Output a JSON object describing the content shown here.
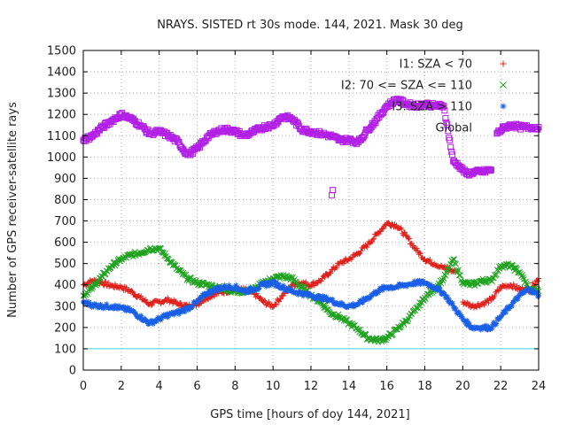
{
  "chart_data": {
    "type": "scatter",
    "title": "NRAYS. SISTED rt 30s mode. 144, 2021. Mask 30 deg",
    "xlabel": "GPS time [hours of doy 144, 2021]",
    "ylabel": "Number of GPS receiver-satellite rays",
    "xlim": [
      0,
      24
    ],
    "ylim": [
      0,
      1500
    ],
    "xticks": [
      "0",
      "2",
      "4",
      "6",
      "8",
      "10",
      "12",
      "14",
      "16",
      "18",
      "20",
      "22",
      "24"
    ],
    "yticks": [
      "0",
      "100",
      "200",
      "300",
      "400",
      "500",
      "600",
      "700",
      "800",
      "900",
      "1000",
      "1100",
      "1200",
      "1300",
      "1400",
      "1500"
    ],
    "grid": true,
    "legend_position": "top-right",
    "threshold": {
      "value": 100,
      "color": "#40d8e0"
    },
    "series": [
      {
        "name": "I1: SZA < 70",
        "marker": "+",
        "color": "#e0201a",
        "x": [
          0,
          0.5,
          1,
          1.5,
          2,
          2.5,
          3,
          3.5,
          4,
          4.5,
          5,
          5.5,
          6,
          6.5,
          7,
          7.5,
          8,
          8.5,
          9,
          9.5,
          10,
          10.5,
          11,
          11.5,
          12,
          12.5,
          13,
          13.5,
          14,
          14.5,
          15,
          15.5,
          16,
          16.5,
          17,
          17.5,
          18,
          18.5,
          19,
          19.3,
          19.6,
          20,
          20.5,
          21,
          21.5,
          22,
          22.5,
          23,
          23.5,
          24
        ],
        "y": [
          400,
          420,
          410,
          395,
          390,
          370,
          340,
          310,
          320,
          330,
          310,
          300,
          310,
          340,
          360,
          370,
          380,
          375,
          360,
          320,
          300,
          350,
          400,
          410,
          400,
          420,
          460,
          500,
          520,
          550,
          590,
          640,
          690,
          680,
          630,
          570,
          520,
          500,
          480,
          470,
          460,
          320,
          300,
          310,
          330,
          390,
          400,
          380,
          380,
          430
        ]
      },
      {
        "name": "I2: 70 <= SZA <= 110",
        "marker": "x",
        "color": "#1fa21f",
        "x": [
          0,
          0.5,
          1,
          1.5,
          2,
          2.5,
          3,
          3.5,
          4,
          4.5,
          5,
          5.5,
          6,
          6.5,
          7,
          7.5,
          8,
          8.5,
          9,
          9.5,
          10,
          10.5,
          11,
          11.5,
          12,
          12.5,
          13,
          13.5,
          14,
          14.5,
          15,
          15.5,
          16,
          16.5,
          17,
          17.5,
          18,
          18.5,
          19,
          19.5,
          20,
          20.5,
          21,
          21.5,
          22,
          22.5,
          23,
          23.5,
          24
        ],
        "y": [
          350,
          390,
          440,
          490,
          520,
          540,
          550,
          570,
          570,
          520,
          470,
          430,
          410,
          400,
          390,
          380,
          370,
          370,
          380,
          410,
          430,
          440,
          430,
          390,
          350,
          320,
          270,
          250,
          220,
          190,
          150,
          140,
          150,
          190,
          230,
          280,
          340,
          380,
          430,
          520,
          410,
          400,
          420,
          420,
          490,
          490,
          460,
          380,
          370
        ]
      },
      {
        "name": "I3: SZA > 110",
        "marker": "*",
        "color": "#1a5fe6",
        "x": [
          0,
          0.5,
          1,
          1.5,
          2,
          2.5,
          3,
          3.5,
          4,
          4.5,
          5,
          5.5,
          6,
          6.5,
          7,
          7.5,
          8,
          8.5,
          9,
          9.5,
          10,
          10.5,
          11,
          11.5,
          12,
          12.5,
          13,
          13.5,
          14,
          14.5,
          15,
          15.5,
          16,
          16.5,
          17,
          17.5,
          18,
          18.5,
          19,
          19.5,
          20,
          20.5,
          21,
          21.5,
          22,
          22.5,
          23,
          23.5,
          24
        ],
        "y": [
          320,
          305,
          300,
          300,
          290,
          280,
          250,
          220,
          240,
          260,
          270,
          290,
          320,
          360,
          380,
          390,
          390,
          370,
          380,
          400,
          410,
          390,
          370,
          360,
          350,
          340,
          330,
          310,
          300,
          310,
          340,
          370,
          390,
          390,
          400,
          410,
          410,
          390,
          360,
          300,
          240,
          200,
          200,
          200,
          250,
          300,
          350,
          380,
          350
        ]
      },
      {
        "name": "Global",
        "marker": "square",
        "color": "#b21fe6",
        "x": [
          0,
          0.5,
          1,
          1.5,
          2,
          2.5,
          3,
          3.5,
          4,
          4.5,
          5,
          5.5,
          6,
          6.5,
          7,
          7.5,
          8,
          8.5,
          9,
          9.5,
          10,
          10.5,
          11,
          11.5,
          12,
          12.5,
          13,
          13.5,
          14,
          14.5,
          15,
          15.5,
          16,
          16.5,
          17,
          17.5,
          18,
          18.5,
          19,
          19.5,
          19.8,
          20.2,
          20.6,
          21,
          21.5,
          21.8,
          22.2,
          22.6,
          23,
          23.5,
          24
        ],
        "y": [
          1080,
          1100,
          1140,
          1170,
          1200,
          1180,
          1150,
          1110,
          1120,
          1100,
          1070,
          1010,
          1040,
          1090,
          1120,
          1130,
          1120,
          1100,
          1120,
          1140,
          1150,
          1190,
          1180,
          1130,
          1120,
          1110,
          1100,
          1080,
          1080,
          1070,
          1130,
          1180,
          1240,
          1270,
          1250,
          1240,
          1250,
          1240,
          1240,
          980,
          960,
          920,
          930,
          930,
          940,
          1110,
          1140,
          1150,
          1140,
          1140,
          1140
        ]
      }
    ],
    "outliers": [
      {
        "series": "Global",
        "x": [
          13.1,
          13.15
        ],
        "y": [
          820,
          845
        ]
      }
    ]
  }
}
